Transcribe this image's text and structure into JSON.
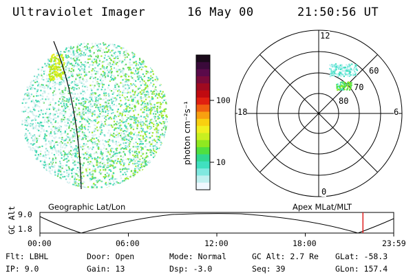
{
  "header": {
    "instrument": "Ultraviolet Imager",
    "date": "16 May 00",
    "time": "21:50:56 UT"
  },
  "colorbar": {
    "unit_label": "photon cm⁻²s⁻¹",
    "ticks": [
      "100",
      "10"
    ],
    "colors_top_to_bottom": [
      "#1a0a1a",
      "#3a0a3a",
      "#5a0a4a",
      "#7a0a3a",
      "#a00a20",
      "#c00a10",
      "#e02010",
      "#f06010",
      "#f8a010",
      "#f8d010",
      "#f0f020",
      "#c8f020",
      "#90e820",
      "#50e040",
      "#30d890",
      "#40e0c0",
      "#80e8e0",
      "#c0f0f0",
      "#f0f8ff"
    ]
  },
  "polar_plot": {
    "mlt_labels": {
      "top": "12",
      "bottom": "0",
      "left": "18",
      "right": "6"
    },
    "lat_labels": [
      "60",
      "70",
      "80"
    ]
  },
  "orbit_strip": {
    "left_title": "Geographic Lat/Lon",
    "right_title": "Apex MLat/MLT",
    "y_axis_label": "GC Alt",
    "y_ticks": [
      "9.0",
      "1.8"
    ],
    "x_ticks": [
      "00:00",
      "06:00",
      "12:00",
      "18:00",
      "23:59"
    ],
    "marker_fraction": 0.913,
    "marker_color": "#e02020"
  },
  "status": {
    "filter": "Flt: LBHL",
    "ip": "IP:  9.0",
    "door": "Door: Open",
    "gain": "Gain: 13",
    "mode": "Mode: Normal",
    "dsp": "Dsp:   -3.0",
    "gc_alt": "GC Alt: 2.7 Re",
    "seq": "Seq: 39",
    "glat": "GLat: -58.3",
    "glon": "GLon: 157.4"
  }
}
